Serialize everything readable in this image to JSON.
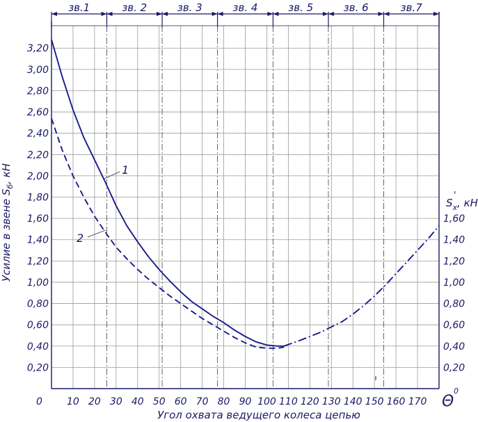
{
  "chart_data": {
    "type": "line",
    "xlabel": "Угол охвата ведущего колеса цепью",
    "x_unit_label": "Θ",
    "x_unit_superscript": "0",
    "ylabel": "Усилие в звене S",
    "ylabel_subscript": "б",
    "ylabel_unit": ", кН",
    "y2label": "S",
    "y2label_prime": "'",
    "y2label_subscript": "x",
    "y2label_unit": ", кН",
    "xlim": [
      0,
      180
    ],
    "ylim": [
      0,
      3.4
    ],
    "x_ticks": [
      0,
      10,
      20,
      30,
      40,
      50,
      60,
      70,
      80,
      90,
      100,
      110,
      120,
      130,
      140,
      150,
      160,
      170
    ],
    "x_tick_labels": [
      "0",
      "10",
      "20",
      "30",
      "40",
      "50",
      "60",
      "70",
      "80",
      "90",
      "100",
      "110",
      "120",
      "130",
      "140",
      "150",
      "160",
      "170"
    ],
    "y_ticks": [
      0.2,
      0.4,
      0.6,
      0.8,
      1.0,
      1.2,
      1.4,
      1.6,
      1.8,
      2.0,
      2.2,
      2.4,
      2.6,
      2.8,
      3.0,
      3.2
    ],
    "y_tick_labels": [
      "0,20",
      "0,40",
      "0,60",
      "0,80",
      "1,00",
      "1,20",
      "1,40",
      "1,60",
      "1,80",
      "2,00",
      "2,20",
      "2,40",
      "2,60",
      "2,80",
      "3,00",
      "3,20"
    ],
    "y2_ticks": [
      0.2,
      0.4,
      0.6,
      0.8,
      1.0,
      1.2,
      1.4,
      1.6
    ],
    "y2_tick_labels": [
      "0,20",
      "0,40",
      "0,60",
      "0,80",
      "1,00",
      "1,20",
      "1,40",
      "1,60"
    ],
    "grid": true,
    "link_zones": {
      "boundaries": [
        0,
        25.7,
        51.4,
        77.1,
        102.9,
        128.6,
        154.3,
        180
      ],
      "labels": [
        "зв.1",
        "зв. 2",
        "зв. 3",
        "зв. 4",
        "зв. 5",
        "зв. 6",
        "зв.7"
      ]
    },
    "series": [
      {
        "name": "1",
        "style": "solid",
        "x": [
          0,
          5,
          10,
          15,
          20,
          25,
          30,
          35,
          40,
          45,
          50,
          55,
          60,
          65,
          70,
          75,
          80,
          85,
          90,
          95,
          100,
          105,
          108
        ],
        "y": [
          3.28,
          2.93,
          2.62,
          2.36,
          2.15,
          1.94,
          1.72,
          1.53,
          1.38,
          1.24,
          1.12,
          1.01,
          0.91,
          0.82,
          0.75,
          0.68,
          0.62,
          0.55,
          0.49,
          0.44,
          0.41,
          0.4,
          0.4
        ]
      },
      {
        "name": "2",
        "style": "dashed",
        "x": [
          0,
          5,
          10,
          15,
          20,
          25,
          30,
          35,
          40,
          45,
          50,
          55,
          60,
          65,
          70,
          75,
          80,
          85,
          90,
          95,
          100,
          105,
          108
        ],
        "y": [
          2.54,
          2.24,
          2.0,
          1.8,
          1.62,
          1.47,
          1.33,
          1.22,
          1.12,
          1.03,
          0.95,
          0.87,
          0.8,
          0.73,
          0.66,
          0.6,
          0.54,
          0.48,
          0.43,
          0.39,
          0.38,
          0.38,
          0.39
        ]
      },
      {
        "name": "",
        "style": "dash-dot",
        "x": [
          108,
          115,
          120,
          125,
          130,
          135,
          140,
          145,
          150,
          155,
          160,
          165,
          170,
          175,
          180
        ],
        "y": [
          0.4,
          0.45,
          0.49,
          0.53,
          0.58,
          0.63,
          0.7,
          0.78,
          0.87,
          0.97,
          1.08,
          1.19,
          1.3,
          1.41,
          1.53
        ]
      }
    ],
    "curve_labels": [
      "1",
      "2"
    ]
  }
}
